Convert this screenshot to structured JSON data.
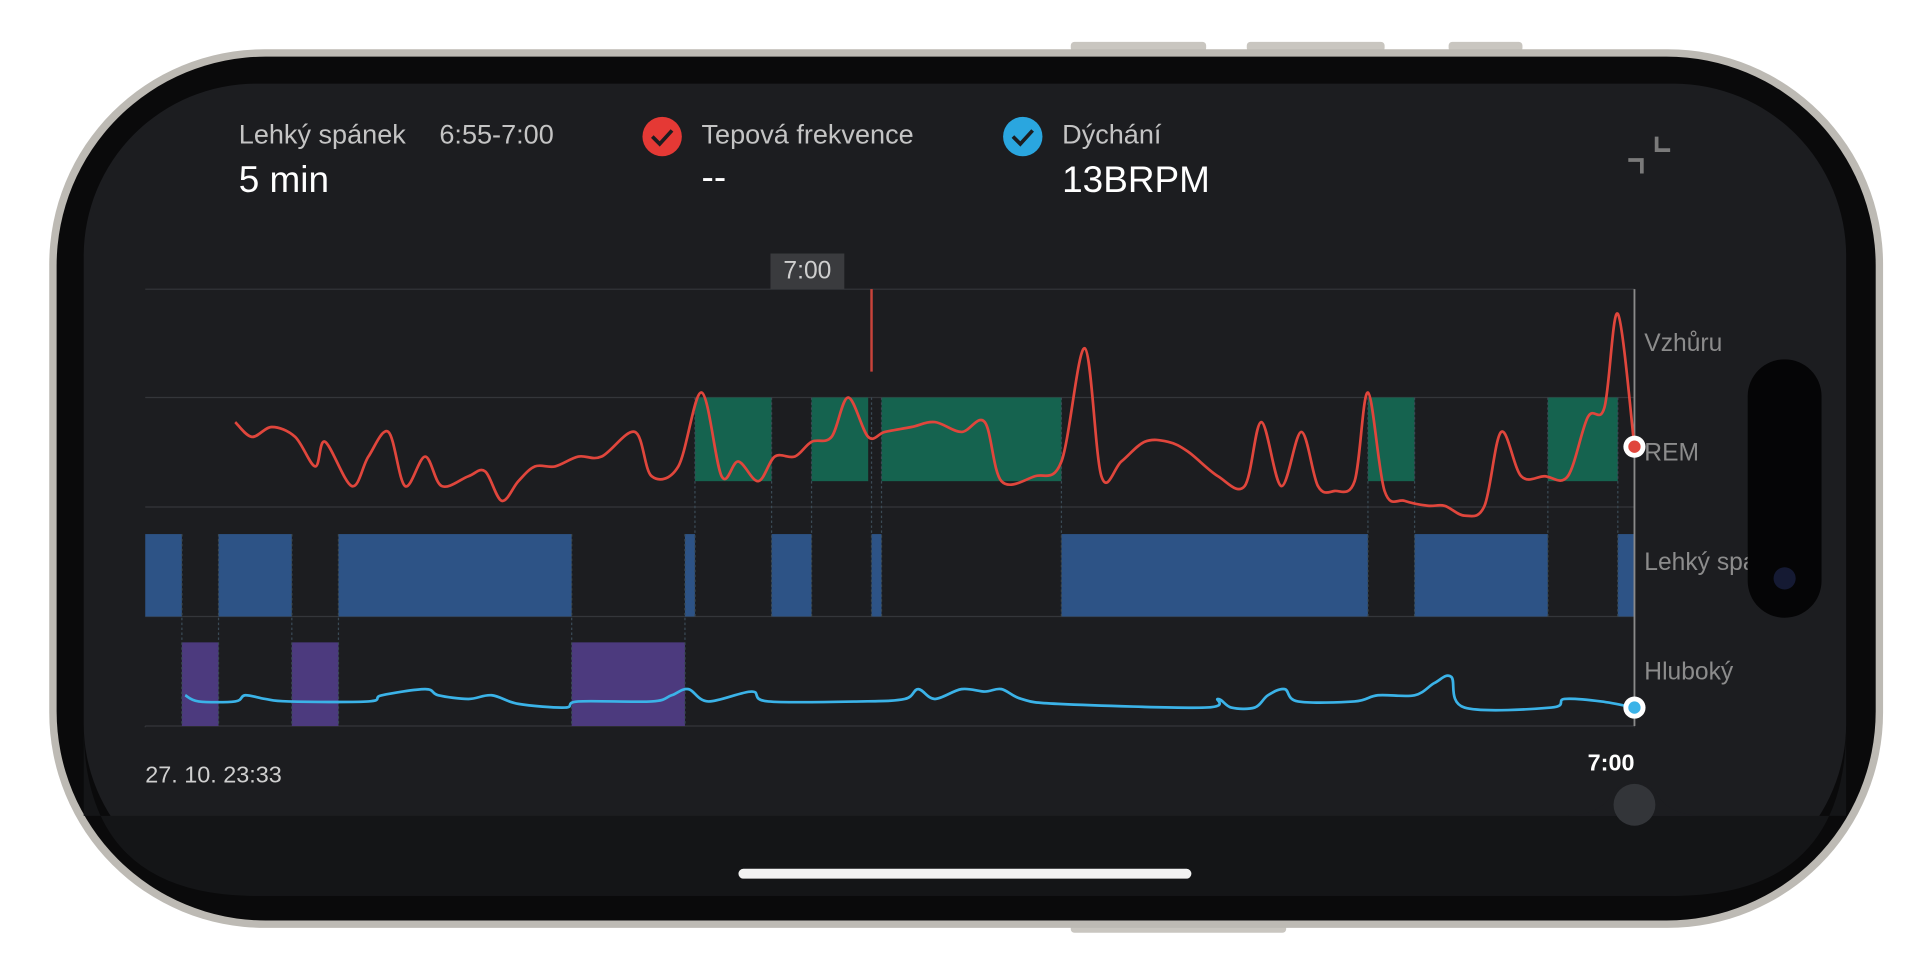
{
  "header": {
    "stage": "Lehký spánek",
    "range": "6:55-7:00",
    "duration": "5 min",
    "heart_rate_label": "Tepová frekvence",
    "heart_rate_value": "--",
    "breathing_label": "Dýchání",
    "breathing_value": "13BRPM"
  },
  "chart": {
    "type": "line",
    "xlim": [
      0,
      447
    ],
    "xticks": [
      {
        "value": 0,
        "label": "27. 10. 23:33"
      },
      {
        "value": 447,
        "label": "7:00"
      }
    ],
    "cursor": {
      "label": "7:00",
      "x": 218
    },
    "stages": {
      "names": [
        "Vzhůru",
        "REM",
        "Lehký spánek",
        "Hluboký"
      ],
      "colors": [
        "#1f6b55",
        "#15634f",
        "#2d5386",
        "#4c3a7e"
      ],
      "segments": [
        {
          "stage": 2,
          "start": 0,
          "end": 11
        },
        {
          "stage": 3,
          "start": 11,
          "end": 22
        },
        {
          "stage": 2,
          "start": 22,
          "end": 44
        },
        {
          "stage": 3,
          "start": 44,
          "end": 58
        },
        {
          "stage": 2,
          "start": 58,
          "end": 128
        },
        {
          "stage": 3,
          "start": 128,
          "end": 162
        },
        {
          "stage": 2,
          "start": 162,
          "end": 165
        },
        {
          "stage": 1,
          "start": 165,
          "end": 188
        },
        {
          "stage": 2,
          "start": 188,
          "end": 200
        },
        {
          "stage": 1,
          "start": 200,
          "end": 217
        },
        {
          "stage": 2,
          "start": 218,
          "end": 221
        },
        {
          "stage": 1,
          "start": 221,
          "end": 275
        },
        {
          "stage": 2,
          "start": 275,
          "end": 367
        },
        {
          "stage": 1,
          "start": 367,
          "end": 381
        },
        {
          "stage": 2,
          "start": 381,
          "end": 421
        },
        {
          "stage": 1,
          "start": 421,
          "end": 442
        },
        {
          "stage": 2,
          "start": 442,
          "end": 447
        }
      ]
    },
    "series": [
      {
        "color": "#e0463c",
        "ylim": [
          40,
          100
        ],
        "x": [
          27,
          32,
          38,
          45,
          51,
          54,
          62,
          67,
          73,
          78,
          84,
          89,
          97,
          102,
          107,
          112,
          117,
          123,
          130,
          137,
          147,
          152,
          160,
          167,
          173,
          178,
          184,
          189,
          195,
          200,
          206,
          211,
          217,
          222,
          230,
          237,
          245,
          252,
          257,
          267,
          275,
          282,
          287,
          293,
          300,
          307,
          313,
          322,
          330,
          335,
          341,
          347,
          352,
          357,
          363,
          367,
          372,
          378,
          385,
          390,
          396,
          402,
          407,
          413,
          420,
          427,
          433,
          438,
          442,
          447
        ],
        "values": [
          73,
          70,
          72,
          70,
          64,
          69,
          60,
          66,
          71,
          60,
          66,
          60,
          62,
          63,
          57,
          61,
          64,
          64,
          66,
          66,
          71,
          62,
          64,
          79,
          62,
          65,
          61,
          66,
          66,
          69,
          70,
          78,
          70,
          71,
          72,
          73,
          71,
          73,
          61,
          62,
          65,
          88,
          62,
          65,
          69,
          69,
          67,
          62,
          60,
          73,
          60,
          71,
          60,
          59,
          61,
          79,
          59,
          57,
          56,
          56,
          54,
          56,
          71,
          62,
          62,
          62,
          74,
          76,
          95,
          68
        ]
      },
      {
        "color": "#3bb3e8",
        "ylim": [
          10,
          20
        ],
        "x": [
          12,
          16,
          27,
          30,
          36,
          43,
          67,
          71,
          84,
          88,
          97,
          104,
          112,
          126,
          130,
          152,
          158,
          163,
          169,
          182,
          187,
          215,
          228,
          232,
          237,
          245,
          252,
          257,
          263,
          274,
          318,
          322,
          326,
          333,
          337,
          342,
          346,
          363,
          370,
          381,
          387,
          392,
          396,
          422,
          426,
          437,
          447
        ],
        "values": [
          15,
          14,
          14,
          15,
          14.4,
          14,
          14,
          15,
          16,
          15,
          14.4,
          15,
          13.6,
          13,
          14,
          14,
          15,
          16,
          14,
          15.6,
          14,
          14,
          14.4,
          16,
          14.4,
          16,
          15.6,
          16,
          14.4,
          13.6,
          13,
          14.4,
          13,
          13,
          15,
          16,
          14,
          14,
          15,
          15,
          17,
          18,
          13,
          13,
          14.4,
          14,
          13
        ]
      }
    ]
  }
}
